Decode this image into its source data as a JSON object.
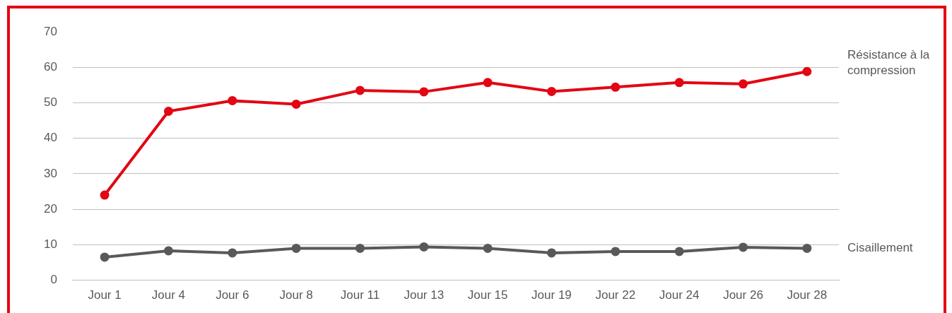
{
  "chart_data": {
    "type": "line",
    "categories": [
      "Jour 1",
      "Jour 4",
      "Jour 6",
      "Jour 8",
      "Jour 11",
      "Jour 13",
      "Jour 15",
      "Jour 19",
      "Jour 22",
      "Jour 24",
      "Jour 26",
      "Jour 28"
    ],
    "series": [
      {
        "name": "Résistance à la compression",
        "color": "#e30613",
        "values": [
          24.0,
          47.6,
          50.6,
          49.6,
          53.5,
          53.1,
          55.7,
          53.2,
          54.4,
          55.7,
          55.3,
          58.8
        ]
      },
      {
        "name": "Cisaillement",
        "color": "#595959",
        "values": [
          6.5,
          8.3,
          7.7,
          9.0,
          9.0,
          9.4,
          9.0,
          7.7,
          8.1,
          8.1,
          9.3,
          9.0
        ]
      }
    ],
    "ylim": [
      0,
      70
    ],
    "yticks": [
      0,
      10,
      20,
      30,
      40,
      50,
      60,
      70
    ],
    "grid": "y",
    "legend": false,
    "marker": "circle",
    "line_style": "solid"
  }
}
